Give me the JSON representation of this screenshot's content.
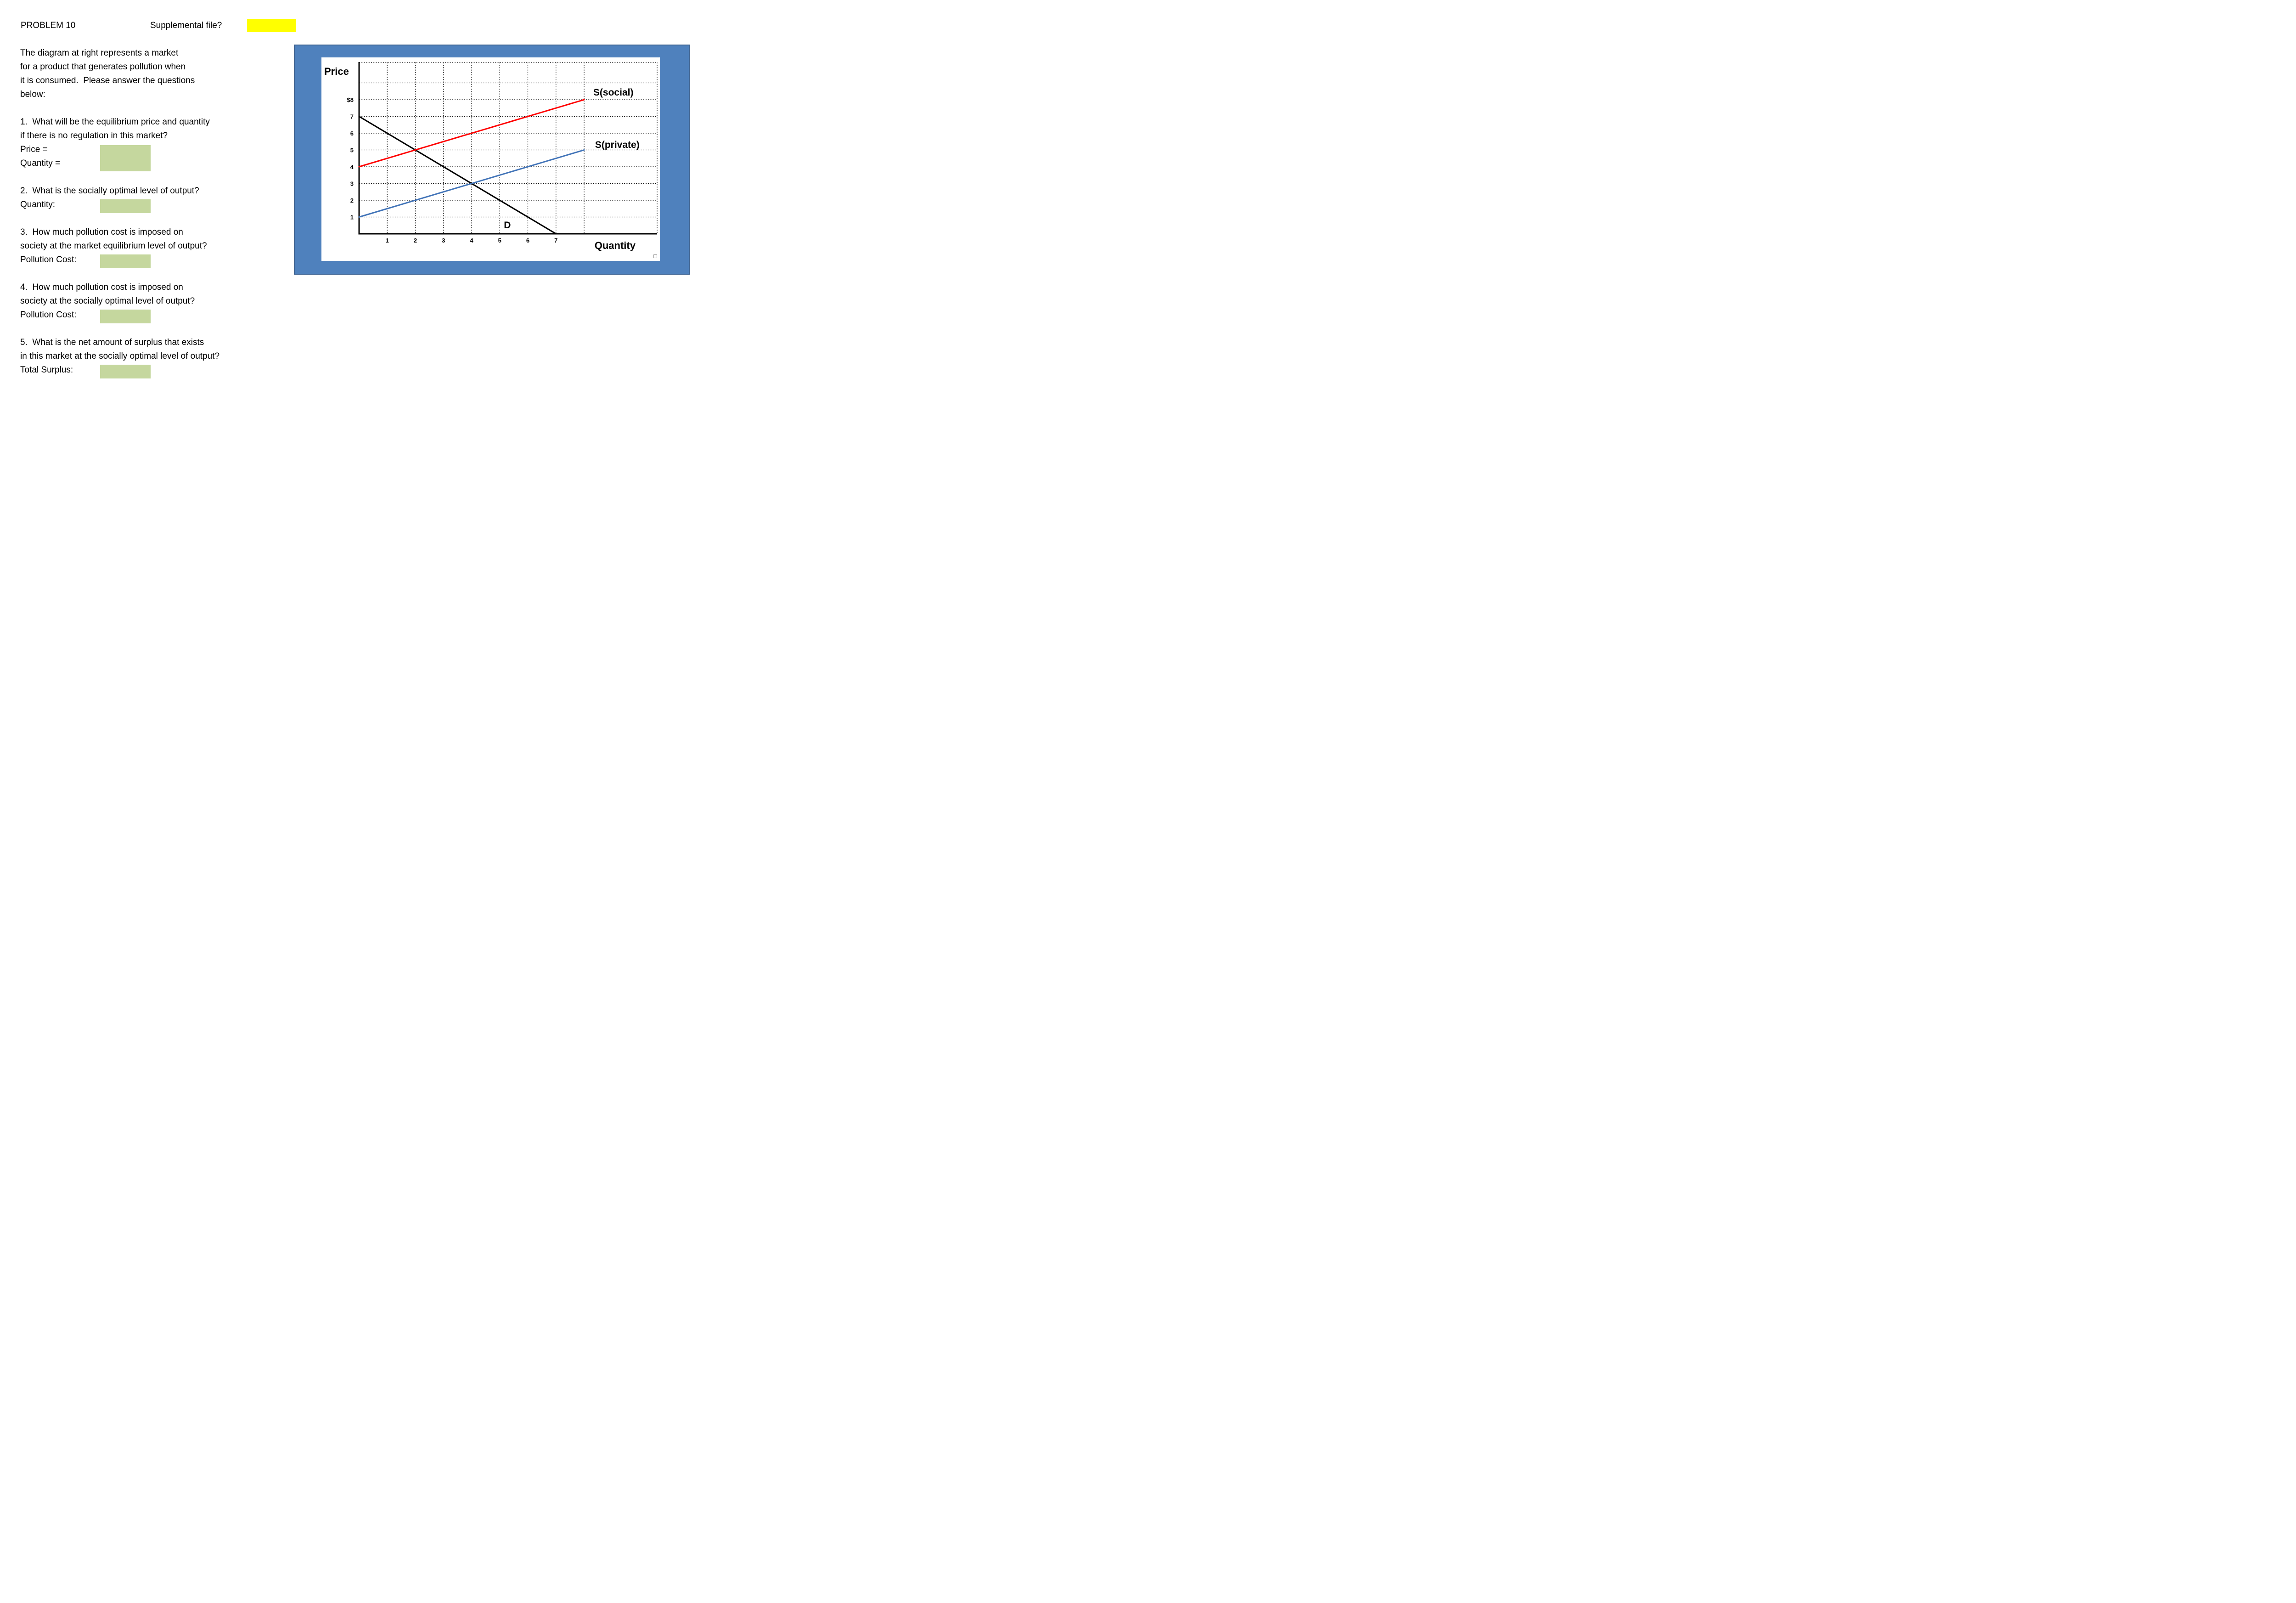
{
  "header": {
    "problem_label": "PROBLEM 10",
    "supplemental_question": "Supplemental file?",
    "supplemental_highlight_color": "#ffff00"
  },
  "intro": {
    "line1": "The diagram at right represents a market",
    "line2": "for a product that generates pollution when",
    "line3": "it is consumed.  Please answer the questions",
    "line4": "below:"
  },
  "questions": {
    "q1": {
      "line1": "1.  What will be the equilibrium price and quantity",
      "line2": "if there is no regulation in this market?",
      "field1": "Price =",
      "field2": "Quantity ="
    },
    "q2": {
      "line1": "2.  What is the socially optimal level of output?",
      "field1": "Quantity:"
    },
    "q3": {
      "line1": "3.  How much pollution cost is imposed on",
      "line2": "society at the market equilibrium level of output?",
      "field1": "Pollution Cost:"
    },
    "q4": {
      "line1": "4.  How much pollution cost is imposed on",
      "line2": "society at the socially optimal level of output?",
      "field1": "Pollution Cost:"
    },
    "q5": {
      "line1": "5.  What is the net amount of surplus that exists",
      "line2": "in this market at the socially optimal level of output?",
      "field1": "Total Surplus:"
    }
  },
  "answer_box_color": "#c5d79e",
  "chart_data": {
    "type": "line",
    "ylabel": "Price",
    "xlabel": "Quantity",
    "xlim": [
      0,
      10.6
    ],
    "ylim": [
      0,
      10.2
    ],
    "grid": "dotted",
    "frame_color": "#4f81bd",
    "x_ticks": [
      {
        "value": 1,
        "label": "1"
      },
      {
        "value": 2,
        "label": "2"
      },
      {
        "value": 3,
        "label": "3"
      },
      {
        "value": 4,
        "label": "4"
      },
      {
        "value": 5,
        "label": "5"
      },
      {
        "value": 6,
        "label": "6"
      },
      {
        "value": 7,
        "label": "7"
      }
    ],
    "y_ticks": [
      {
        "value": 8,
        "label": "$8"
      },
      {
        "value": 7,
        "label": "7"
      },
      {
        "value": 6,
        "label": "6"
      },
      {
        "value": 5,
        "label": "5"
      },
      {
        "value": 4,
        "label": "4"
      },
      {
        "value": 3,
        "label": "3"
      },
      {
        "value": 2,
        "label": "2"
      },
      {
        "value": 1,
        "label": "1"
      }
    ],
    "x_gridlines": [
      1,
      2,
      3,
      4,
      5,
      6,
      7,
      8
    ],
    "y_gridlines": [
      1,
      2,
      3,
      4,
      5,
      6,
      7,
      8,
      9
    ],
    "series": [
      {
        "name": "D",
        "color": "#000000",
        "points": [
          [
            0,
            7
          ],
          [
            7,
            0
          ]
        ]
      },
      {
        "name": "S(social)",
        "color": "#ff0000",
        "points": [
          [
            0,
            4
          ],
          [
            8,
            8
          ]
        ]
      },
      {
        "name": "S(private)",
        "color": "#4274b8",
        "points": [
          [
            0,
            1
          ],
          [
            8,
            5
          ]
        ]
      }
    ],
    "annotations": [
      {
        "text": "S(social)",
        "x": 9.04,
        "y": 8.25
      },
      {
        "text": "S(private)",
        "x": 9.18,
        "y": 5.12
      },
      {
        "text": "D",
        "x": 5.27,
        "y": 0.33
      }
    ]
  }
}
